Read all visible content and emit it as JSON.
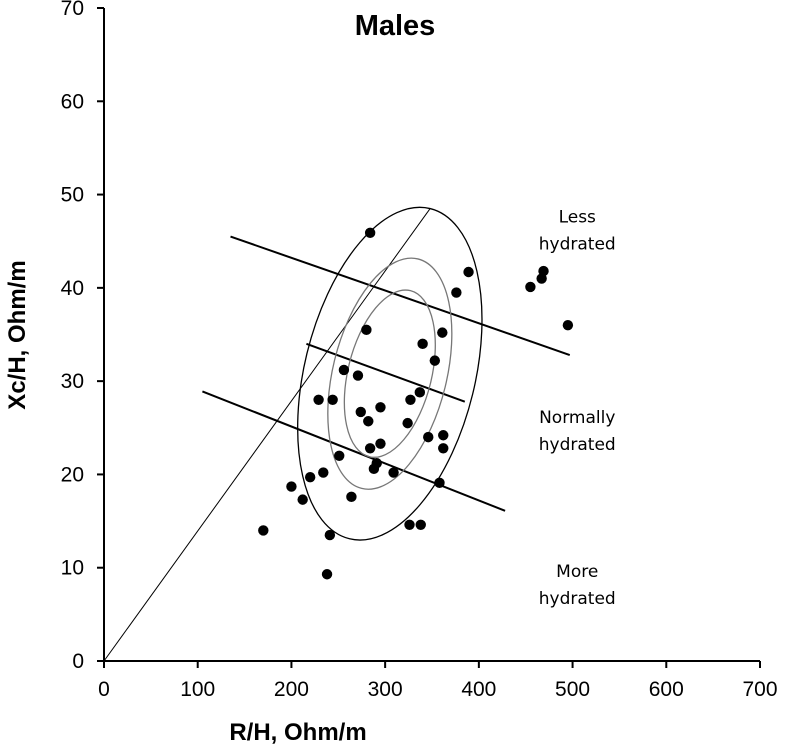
{
  "chart_data": {
    "type": "scatter",
    "title": "Males",
    "xlabel": "R/H, Ohm/m",
    "ylabel": "Xc/H, Ohm/m",
    "xlim": [
      0,
      700
    ],
    "ylim": [
      0,
      70
    ],
    "x_ticks": [
      0,
      100,
      200,
      300,
      400,
      500,
      600,
      700
    ],
    "y_ticks": [
      0,
      10,
      20,
      30,
      40,
      50,
      60,
      70
    ],
    "grid": false,
    "legend": "none",
    "point_color": "#000000",
    "points": [
      [
        170,
        14.0
      ],
      [
        200,
        18.7
      ],
      [
        212,
        17.3
      ],
      [
        220,
        19.7
      ],
      [
        229,
        28.0
      ],
      [
        234,
        20.2
      ],
      [
        238,
        9.3
      ],
      [
        241,
        13.5
      ],
      [
        244,
        28.0
      ],
      [
        251,
        22.0
      ],
      [
        256,
        31.2
      ],
      [
        264,
        17.6
      ],
      [
        271,
        30.6
      ],
      [
        274,
        26.7
      ],
      [
        280,
        35.5
      ],
      [
        282,
        25.7
      ],
      [
        284,
        22.8
      ],
      [
        284,
        45.9
      ],
      [
        288,
        20.6
      ],
      [
        291,
        21.2
      ],
      [
        295,
        23.3
      ],
      [
        295,
        27.2
      ],
      [
        309,
        20.2
      ],
      [
        324,
        25.5
      ],
      [
        326,
        14.6
      ],
      [
        327,
        28.0
      ],
      [
        337,
        28.8
      ],
      [
        338,
        14.6
      ],
      [
        340,
        34.0
      ],
      [
        346,
        24.0
      ],
      [
        353,
        32.2
      ],
      [
        358,
        19.1
      ],
      [
        361,
        35.2
      ],
      [
        362,
        22.8
      ],
      [
        362,
        24.2
      ],
      [
        376,
        39.5
      ],
      [
        389,
        41.7
      ],
      [
        455,
        40.1
      ],
      [
        467,
        41.0
      ],
      [
        469,
        41.8
      ],
      [
        495,
        36.0
      ]
    ],
    "reference_lines": [
      {
        "name": "regression-through-origin",
        "from": [
          0,
          0
        ],
        "to": [
          348,
          48.5
        ]
      },
      {
        "name": "upper-perpendicular",
        "from": [
          135,
          45.5
        ],
        "to": [
          497,
          32.8
        ]
      },
      {
        "name": "middle-perpendicular",
        "from": [
          216,
          34.0
        ],
        "to": [
          385,
          27.8
        ]
      },
      {
        "name": "lower-perpendicular",
        "from": [
          105,
          28.9
        ],
        "to": [
          428,
          16.1
        ]
      }
    ],
    "ellipses": [
      {
        "name": "tolerance-95",
        "center": [
          305,
          30.8
        ],
        "major_axis_end": [
          348,
          48.5
        ],
        "minor_axis_end": [
          391,
          27.8
        ],
        "color": "#000000"
      },
      {
        "name": "tolerance-75",
        "center": [
          305,
          30.8
        ],
        "major_axis_end": [
          335,
          43.1
        ],
        "minor_axis_end": [
          362,
          28.7
        ],
        "color": "#777777"
      },
      {
        "name": "tolerance-50",
        "center": [
          305,
          30.8
        ],
        "major_axis_end": [
          327,
          39.7
        ],
        "minor_axis_end": [
          347,
          29.3
        ],
        "color": "#777777"
      }
    ],
    "annotations": [
      {
        "lines": [
          "Less",
          "hydrated"
        ],
        "x": 505,
        "y": 47.0
      },
      {
        "lines": [
          "Normally",
          "hydrated"
        ],
        "x": 505,
        "y": 25.5
      },
      {
        "lines": [
          "More",
          "hydrated"
        ],
        "x": 505,
        "y": 9.0
      }
    ]
  }
}
